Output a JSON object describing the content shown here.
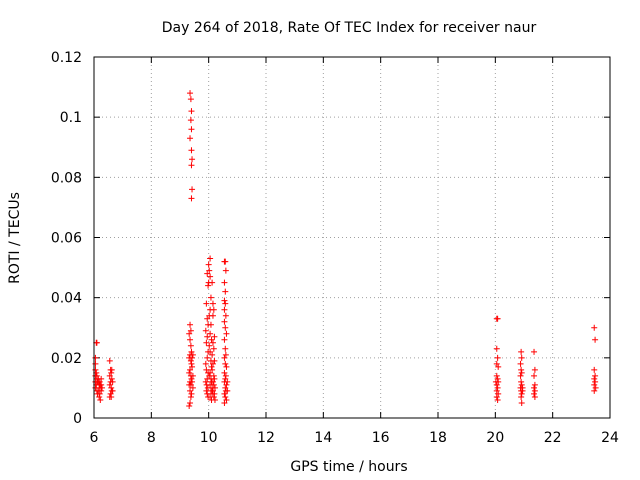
{
  "chart_data": {
    "type": "scatter",
    "title": "Day 264 of 2018, Rate Of TEC Index for receiver naur",
    "xlabel": "GPS time / hours",
    "ylabel": "ROTI / TECUs",
    "xlim": [
      6,
      24
    ],
    "ylim": [
      0,
      0.12
    ],
    "x_ticks": [
      6,
      8,
      10,
      12,
      14,
      16,
      18,
      20,
      22,
      24
    ],
    "y_ticks": [
      0,
      0.02,
      0.04,
      0.06,
      0.08,
      0.1,
      0.12
    ],
    "x_tick_labels": [
      "6",
      "8",
      "10",
      "12",
      "14",
      "16",
      "18",
      "20",
      "22",
      "24"
    ],
    "y_tick_labels": [
      "0",
      "0.02",
      "0.04",
      "0.06",
      "0.08",
      "0.1",
      "0.12"
    ],
    "grid": true,
    "marker": "+",
    "color": "#ff0000",
    "series": [
      {
        "name": "ROTI",
        "points": [
          [
            6.08,
            0.025
          ],
          [
            6.1,
            0.025
          ],
          [
            6.05,
            0.02
          ],
          [
            6.05,
            0.018
          ],
          [
            6.05,
            0.016
          ],
          [
            6.08,
            0.015
          ],
          [
            6.05,
            0.014
          ],
          [
            6.1,
            0.013
          ],
          [
            6.05,
            0.012
          ],
          [
            6.12,
            0.012
          ],
          [
            6.15,
            0.012
          ],
          [
            6.08,
            0.011
          ],
          [
            6.18,
            0.011
          ],
          [
            6.2,
            0.01
          ],
          [
            6.05,
            0.01
          ],
          [
            6.1,
            0.009
          ],
          [
            6.15,
            0.009
          ],
          [
            6.12,
            0.008
          ],
          [
            6.2,
            0.008
          ],
          [
            6.18,
            0.007
          ],
          [
            6.22,
            0.006
          ],
          [
            6.25,
            0.013
          ],
          [
            6.25,
            0.011
          ],
          [
            6.28,
            0.01
          ],
          [
            6.15,
            0.013
          ],
          [
            6.2,
            0.012
          ],
          [
            6.22,
            0.011
          ],
          [
            6.1,
            0.014
          ],
          [
            6.25,
            0.009
          ],
          [
            6.55,
            0.019
          ],
          [
            6.58,
            0.016
          ],
          [
            6.6,
            0.015
          ],
          [
            6.55,
            0.014
          ],
          [
            6.62,
            0.013
          ],
          [
            6.58,
            0.012
          ],
          [
            6.55,
            0.011
          ],
          [
            6.6,
            0.01
          ],
          [
            6.62,
            0.009
          ],
          [
            6.58,
            0.008
          ],
          [
            6.55,
            0.007
          ],
          [
            6.65,
            0.012
          ],
          [
            6.65,
            0.009
          ],
          [
            6.6,
            0.007
          ],
          [
            6.62,
            0.016
          ],
          [
            9.35,
            0.108
          ],
          [
            9.38,
            0.106
          ],
          [
            9.4,
            0.102
          ],
          [
            9.38,
            0.099
          ],
          [
            9.4,
            0.096
          ],
          [
            9.35,
            0.093
          ],
          [
            9.4,
            0.089
          ],
          [
            9.42,
            0.086
          ],
          [
            9.4,
            0.084
          ],
          [
            9.42,
            0.076
          ],
          [
            9.4,
            0.073
          ],
          [
            9.35,
            0.031
          ],
          [
            9.38,
            0.029
          ],
          [
            9.32,
            0.028
          ],
          [
            9.35,
            0.026
          ],
          [
            9.38,
            0.024
          ],
          [
            9.4,
            0.022
          ],
          [
            9.35,
            0.021
          ],
          [
            9.32,
            0.02
          ],
          [
            9.38,
            0.019
          ],
          [
            9.4,
            0.018
          ],
          [
            9.35,
            0.016
          ],
          [
            9.32,
            0.015
          ],
          [
            9.38,
            0.014
          ],
          [
            9.4,
            0.013
          ],
          [
            9.35,
            0.012
          ],
          [
            9.42,
            0.012
          ],
          [
            9.32,
            0.011
          ],
          [
            9.38,
            0.011
          ],
          [
            9.45,
            0.01
          ],
          [
            9.35,
            0.009
          ],
          [
            9.4,
            0.008
          ],
          [
            9.38,
            0.007
          ],
          [
            9.35,
            0.005
          ],
          [
            9.32,
            0.004
          ],
          [
            9.42,
            0.02
          ],
          [
            9.45,
            0.014
          ],
          [
            9.45,
            0.021
          ],
          [
            9.42,
            0.017
          ],
          [
            9.95,
            0.048
          ],
          [
            9.98,
            0.044
          ],
          [
            9.92,
            0.038
          ],
          [
            9.95,
            0.033
          ],
          [
            9.98,
            0.031
          ],
          [
            9.9,
            0.029
          ],
          [
            9.95,
            0.027
          ],
          [
            9.92,
            0.025
          ],
          [
            9.98,
            0.022
          ],
          [
            9.95,
            0.02
          ],
          [
            9.9,
            0.018
          ],
          [
            9.92,
            0.016
          ],
          [
            9.98,
            0.015
          ],
          [
            9.95,
            0.013
          ],
          [
            9.9,
            0.012
          ],
          [
            9.93,
            0.011
          ],
          [
            9.97,
            0.01
          ],
          [
            9.92,
            0.009
          ],
          [
            9.95,
            0.008
          ],
          [
            9.98,
            0.007
          ],
          [
            10.05,
            0.053
          ],
          [
            10.0,
            0.051
          ],
          [
            10.02,
            0.049
          ],
          [
            10.05,
            0.047
          ],
          [
            10.0,
            0.045
          ],
          [
            10.08,
            0.04
          ],
          [
            10.05,
            0.036
          ],
          [
            10.02,
            0.034
          ],
          [
            10.08,
            0.031
          ],
          [
            10.05,
            0.028
          ],
          [
            10.1,
            0.026
          ],
          [
            10.02,
            0.024
          ],
          [
            10.05,
            0.022
          ],
          [
            10.08,
            0.019
          ],
          [
            10.1,
            0.017
          ],
          [
            10.05,
            0.015
          ],
          [
            10.02,
            0.014
          ],
          [
            10.08,
            0.013
          ],
          [
            10.1,
            0.012
          ],
          [
            10.05,
            0.011
          ],
          [
            10.12,
            0.01
          ],
          [
            10.08,
            0.009
          ],
          [
            10.12,
            0.008
          ],
          [
            10.05,
            0.007
          ],
          [
            10.1,
            0.006
          ],
          [
            10.12,
            0.045
          ],
          [
            10.15,
            0.038
          ],
          [
            10.18,
            0.036
          ],
          [
            10.15,
            0.034
          ],
          [
            10.2,
            0.027
          ],
          [
            10.15,
            0.025
          ],
          [
            10.18,
            0.023
          ],
          [
            10.12,
            0.021
          ],
          [
            10.2,
            0.019
          ],
          [
            10.15,
            0.018
          ],
          [
            10.12,
            0.016
          ],
          [
            10.18,
            0.014
          ],
          [
            10.2,
            0.013
          ],
          [
            10.15,
            0.012
          ],
          [
            10.18,
            0.011
          ],
          [
            10.22,
            0.01
          ],
          [
            10.15,
            0.009
          ],
          [
            10.2,
            0.008
          ],
          [
            10.18,
            0.007
          ],
          [
            10.22,
            0.006
          ],
          [
            10.55,
            0.052
          ],
          [
            10.58,
            0.052
          ],
          [
            10.6,
            0.049
          ],
          [
            10.55,
            0.045
          ],
          [
            10.58,
            0.042
          ],
          [
            10.55,
            0.039
          ],
          [
            10.58,
            0.038
          ],
          [
            10.55,
            0.036
          ],
          [
            10.6,
            0.034
          ],
          [
            10.55,
            0.032
          ],
          [
            10.58,
            0.03
          ],
          [
            10.62,
            0.028
          ],
          [
            10.55,
            0.026
          ],
          [
            10.58,
            0.023
          ],
          [
            10.6,
            0.021
          ],
          [
            10.55,
            0.02
          ],
          [
            10.58,
            0.018
          ],
          [
            10.62,
            0.017
          ],
          [
            10.55,
            0.015
          ],
          [
            10.6,
            0.014
          ],
          [
            10.58,
            0.013
          ],
          [
            10.55,
            0.012
          ],
          [
            10.62,
            0.011
          ],
          [
            10.58,
            0.01
          ],
          [
            10.6,
            0.009
          ],
          [
            10.55,
            0.008
          ],
          [
            10.58,
            0.007
          ],
          [
            10.62,
            0.006
          ],
          [
            10.55,
            0.005
          ],
          [
            10.65,
            0.012
          ],
          [
            10.65,
            0.009
          ],
          [
            20.05,
            0.033
          ],
          [
            20.08,
            0.033
          ],
          [
            20.05,
            0.023
          ],
          [
            20.08,
            0.02
          ],
          [
            20.05,
            0.018
          ],
          [
            20.1,
            0.017
          ],
          [
            20.05,
            0.014
          ],
          [
            20.08,
            0.013
          ],
          [
            20.02,
            0.012
          ],
          [
            20.1,
            0.012
          ],
          [
            20.05,
            0.011
          ],
          [
            20.08,
            0.01
          ],
          [
            20.05,
            0.009
          ],
          [
            20.1,
            0.008
          ],
          [
            20.05,
            0.007
          ],
          [
            20.08,
            0.006
          ],
          [
            20.9,
            0.022
          ],
          [
            20.92,
            0.02
          ],
          [
            20.88,
            0.018
          ],
          [
            20.9,
            0.016
          ],
          [
            20.92,
            0.015
          ],
          [
            20.88,
            0.014
          ],
          [
            20.9,
            0.012
          ],
          [
            20.92,
            0.011
          ],
          [
            20.88,
            0.01
          ],
          [
            20.9,
            0.009
          ],
          [
            20.92,
            0.008
          ],
          [
            20.95,
            0.01
          ],
          [
            20.95,
            0.009
          ],
          [
            20.9,
            0.007
          ],
          [
            20.92,
            0.005
          ],
          [
            21.35,
            0.022
          ],
          [
            21.38,
            0.016
          ],
          [
            21.35,
            0.014
          ],
          [
            21.38,
            0.011
          ],
          [
            21.35,
            0.01
          ],
          [
            21.38,
            0.009
          ],
          [
            21.35,
            0.008
          ],
          [
            21.38,
            0.007
          ],
          [
            23.45,
            0.03
          ],
          [
            23.48,
            0.026
          ],
          [
            23.45,
            0.016
          ],
          [
            23.48,
            0.014
          ],
          [
            23.45,
            0.013
          ],
          [
            23.48,
            0.012
          ],
          [
            23.45,
            0.011
          ],
          [
            23.5,
            0.01
          ],
          [
            23.45,
            0.009
          ]
        ]
      }
    ]
  }
}
